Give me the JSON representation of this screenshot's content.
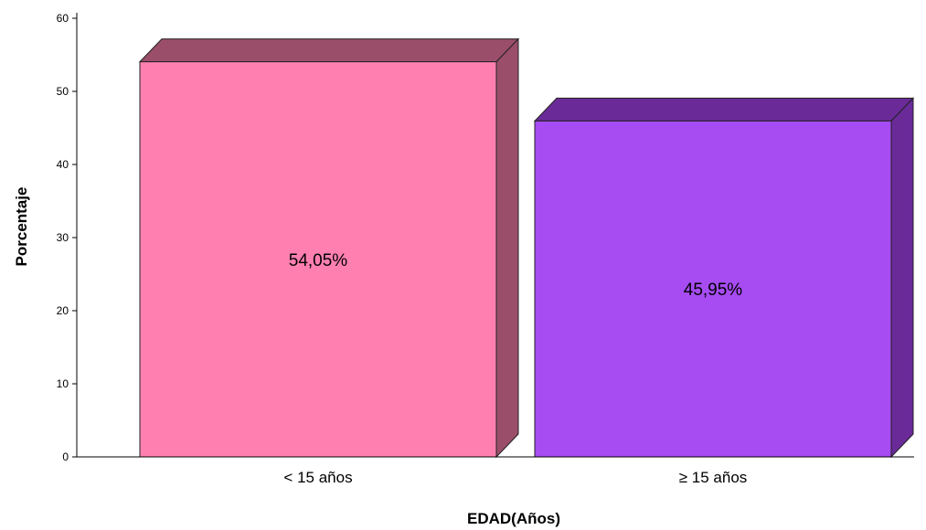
{
  "chart_data": {
    "type": "bar",
    "categories": [
      "< 15 años",
      "≥ 15 años"
    ],
    "values": [
      54.05,
      45.95
    ],
    "data_labels": [
      "54,05%",
      "45,95%"
    ],
    "xlabel": "EDAD(Años)",
    "ylabel": "Porcentaje",
    "ylim": [
      0,
      60
    ],
    "yticks": [
      "0",
      "10",
      "20",
      "30",
      "40",
      "50",
      "60"
    ],
    "grid": false,
    "legend": "none",
    "style": "3d",
    "colors": {
      "bar_front": [
        "#ff80b0",
        "#a64cf2"
      ],
      "bar_top": [
        "#9b4e6a",
        "#6a2a98"
      ],
      "bar_side": [
        "#9b4e6a",
        "#6a2a98"
      ]
    }
  }
}
